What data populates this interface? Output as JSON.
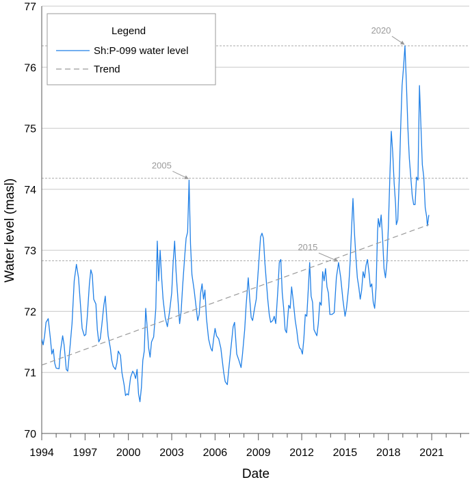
{
  "chart_data": {
    "type": "line",
    "title": "",
    "xlabel": "Date",
    "ylabel": "Water level (masl)",
    "xlim": [
      1994,
      2023.6
    ],
    "ylim": [
      70,
      77
    ],
    "x_ticks": [
      1994,
      1997,
      2000,
      2003,
      2006,
      2009,
      2012,
      2015,
      2018,
      2021
    ],
    "y_ticks": [
      70,
      71,
      72,
      73,
      74,
      75,
      76,
      77
    ],
    "grid": "horizontal",
    "legend": {
      "title": "Legend",
      "position": "top-left",
      "entries": [
        "Sh:P-099 water level",
        "Trend"
      ]
    },
    "series": [
      {
        "name": "Sh:P-099 water level",
        "color": "#1f7fe6",
        "points": [
          [
            1994.0,
            71.55
          ],
          [
            1994.1,
            71.45
          ],
          [
            1994.2,
            71.6
          ],
          [
            1994.3,
            71.82
          ],
          [
            1994.45,
            71.88
          ],
          [
            1994.6,
            71.55
          ],
          [
            1994.7,
            71.3
          ],
          [
            1994.8,
            71.38
          ],
          [
            1994.9,
            71.15
          ],
          [
            1995.0,
            71.07
          ],
          [
            1995.2,
            71.06
          ],
          [
            1995.3,
            71.35
          ],
          [
            1995.45,
            71.6
          ],
          [
            1995.55,
            71.45
          ],
          [
            1995.7,
            71.05
          ],
          [
            1995.8,
            71.02
          ],
          [
            1995.95,
            71.4
          ],
          [
            1996.1,
            71.8
          ],
          [
            1996.25,
            72.5
          ],
          [
            1996.4,
            72.77
          ],
          [
            1996.55,
            72.55
          ],
          [
            1996.7,
            72.05
          ],
          [
            1996.8,
            71.72
          ],
          [
            1996.95,
            71.6
          ],
          [
            1997.05,
            71.62
          ],
          [
            1997.15,
            71.9
          ],
          [
            1997.3,
            72.45
          ],
          [
            1997.4,
            72.68
          ],
          [
            1997.5,
            72.6
          ],
          [
            1997.6,
            72.2
          ],
          [
            1997.75,
            72.12
          ],
          [
            1997.85,
            71.7
          ],
          [
            1997.95,
            71.5
          ],
          [
            1998.05,
            71.55
          ],
          [
            1998.15,
            71.75
          ],
          [
            1998.3,
            72.1
          ],
          [
            1998.4,
            72.25
          ],
          [
            1998.5,
            71.9
          ],
          [
            1998.6,
            71.6
          ],
          [
            1998.75,
            71.4
          ],
          [
            1998.85,
            71.2
          ],
          [
            1998.95,
            71.1
          ],
          [
            1999.1,
            71.05
          ],
          [
            1999.2,
            71.15
          ],
          [
            1999.3,
            71.35
          ],
          [
            1999.45,
            71.28
          ],
          [
            1999.55,
            71.0
          ],
          [
            1999.7,
            70.8
          ],
          [
            1999.8,
            70.62
          ],
          [
            1999.9,
            70.65
          ],
          [
            2000.0,
            70.63
          ],
          [
            2000.15,
            70.92
          ],
          [
            2000.3,
            71.02
          ],
          [
            2000.4,
            70.98
          ],
          [
            2000.5,
            70.9
          ],
          [
            2000.6,
            71.05
          ],
          [
            2000.7,
            70.65
          ],
          [
            2000.8,
            70.52
          ],
          [
            2000.9,
            70.75
          ],
          [
            2001.0,
            71.2
          ],
          [
            2001.1,
            71.35
          ],
          [
            2001.2,
            72.05
          ],
          [
            2001.3,
            71.75
          ],
          [
            2001.4,
            71.4
          ],
          [
            2001.5,
            71.25
          ],
          [
            2001.6,
            71.5
          ],
          [
            2001.75,
            71.58
          ],
          [
            2001.9,
            72.05
          ],
          [
            2002.0,
            73.15
          ],
          [
            2002.1,
            72.5
          ],
          [
            2002.2,
            73.0
          ],
          [
            2002.3,
            72.55
          ],
          [
            2002.4,
            72.2
          ],
          [
            2002.55,
            71.9
          ],
          [
            2002.7,
            71.75
          ],
          [
            2002.85,
            72.0
          ],
          [
            2003.0,
            72.3
          ],
          [
            2003.1,
            72.8
          ],
          [
            2003.2,
            73.15
          ],
          [
            2003.3,
            72.65
          ],
          [
            2003.4,
            72.3
          ],
          [
            2003.55,
            71.8
          ],
          [
            2003.65,
            72.0
          ],
          [
            2003.75,
            72.4
          ],
          [
            2003.9,
            72.9
          ],
          [
            2004.0,
            73.2
          ],
          [
            2004.1,
            73.3
          ],
          [
            2004.2,
            74.15
          ],
          [
            2004.3,
            73.1
          ],
          [
            2004.4,
            72.6
          ],
          [
            2004.55,
            72.35
          ],
          [
            2004.7,
            72.05
          ],
          [
            2004.8,
            71.85
          ],
          [
            2004.9,
            71.95
          ],
          [
            2005.0,
            72.3
          ],
          [
            2005.1,
            72.45
          ],
          [
            2005.2,
            72.2
          ],
          [
            2005.3,
            72.35
          ],
          [
            2005.4,
            71.9
          ],
          [
            2005.55,
            71.55
          ],
          [
            2005.7,
            71.4
          ],
          [
            2005.8,
            71.35
          ],
          [
            2005.9,
            71.55
          ],
          [
            2006.0,
            71.72
          ],
          [
            2006.1,
            71.6
          ],
          [
            2006.25,
            71.55
          ],
          [
            2006.4,
            71.4
          ],
          [
            2006.5,
            71.2
          ],
          [
            2006.6,
            71.0
          ],
          [
            2006.7,
            70.85
          ],
          [
            2006.85,
            70.8
          ],
          [
            2006.95,
            71.05
          ],
          [
            2007.1,
            71.4
          ],
          [
            2007.25,
            71.75
          ],
          [
            2007.35,
            71.82
          ],
          [
            2007.5,
            71.3
          ],
          [
            2007.65,
            71.2
          ],
          [
            2007.8,
            71.08
          ],
          [
            2007.9,
            71.3
          ],
          [
            2008.05,
            71.7
          ],
          [
            2008.15,
            72.1
          ],
          [
            2008.3,
            72.55
          ],
          [
            2008.4,
            72.2
          ],
          [
            2008.5,
            71.9
          ],
          [
            2008.6,
            71.85
          ],
          [
            2008.7,
            72.0
          ],
          [
            2008.85,
            72.2
          ],
          [
            2009.0,
            72.7
          ],
          [
            2009.15,
            73.22
          ],
          [
            2009.25,
            73.28
          ],
          [
            2009.35,
            73.2
          ],
          [
            2009.45,
            72.8
          ],
          [
            2009.55,
            72.5
          ],
          [
            2009.65,
            72.2
          ],
          [
            2009.75,
            71.95
          ],
          [
            2009.85,
            71.82
          ],
          [
            2010.0,
            71.85
          ],
          [
            2010.1,
            71.92
          ],
          [
            2010.2,
            71.8
          ],
          [
            2010.35,
            72.35
          ],
          [
            2010.45,
            72.8
          ],
          [
            2010.55,
            72.85
          ],
          [
            2010.65,
            72.3
          ],
          [
            2010.75,
            72.05
          ],
          [
            2010.85,
            71.7
          ],
          [
            2010.95,
            71.65
          ],
          [
            2011.1,
            72.1
          ],
          [
            2011.2,
            72.05
          ],
          [
            2011.3,
            72.4
          ],
          [
            2011.4,
            72.2
          ],
          [
            2011.55,
            71.85
          ],
          [
            2011.65,
            71.7
          ],
          [
            2011.75,
            71.5
          ],
          [
            2011.85,
            71.4
          ],
          [
            2011.95,
            71.38
          ],
          [
            2012.05,
            71.3
          ],
          [
            2012.15,
            71.55
          ],
          [
            2012.25,
            71.95
          ],
          [
            2012.35,
            71.92
          ],
          [
            2012.45,
            72.35
          ],
          [
            2012.55,
            72.8
          ],
          [
            2012.65,
            72.25
          ],
          [
            2012.75,
            72.15
          ],
          [
            2012.85,
            71.7
          ],
          [
            2012.95,
            71.65
          ],
          [
            2013.05,
            71.6
          ],
          [
            2013.15,
            71.8
          ],
          [
            2013.25,
            72.15
          ],
          [
            2013.35,
            72.1
          ],
          [
            2013.45,
            72.65
          ],
          [
            2013.55,
            72.5
          ],
          [
            2013.65,
            72.7
          ],
          [
            2013.75,
            72.4
          ],
          [
            2013.85,
            72.3
          ],
          [
            2013.95,
            71.95
          ],
          [
            2014.1,
            71.95
          ],
          [
            2014.25,
            71.98
          ],
          [
            2014.4,
            72.55
          ],
          [
            2014.55,
            72.8
          ],
          [
            2014.7,
            72.55
          ],
          [
            2014.85,
            72.2
          ],
          [
            2015.0,
            71.92
          ],
          [
            2015.1,
            72.05
          ],
          [
            2015.25,
            72.4
          ],
          [
            2015.35,
            72.8
          ],
          [
            2015.45,
            73.35
          ],
          [
            2015.55,
            73.85
          ],
          [
            2015.65,
            73.3
          ],
          [
            2015.75,
            72.9
          ],
          [
            2015.85,
            72.55
          ],
          [
            2015.95,
            72.4
          ],
          [
            2016.05,
            72.2
          ],
          [
            2016.15,
            72.35
          ],
          [
            2016.25,
            72.65
          ],
          [
            2016.35,
            72.55
          ],
          [
            2016.45,
            72.75
          ],
          [
            2016.55,
            72.85
          ],
          [
            2016.65,
            72.65
          ],
          [
            2016.75,
            72.4
          ],
          [
            2016.85,
            72.45
          ],
          [
            2016.95,
            72.15
          ],
          [
            2017.05,
            72.05
          ],
          [
            2017.15,
            72.4
          ],
          [
            2017.25,
            73.3
          ],
          [
            2017.3,
            73.52
          ],
          [
            2017.4,
            73.38
          ],
          [
            2017.5,
            73.58
          ],
          [
            2017.6,
            73.2
          ],
          [
            2017.7,
            72.7
          ],
          [
            2017.8,
            72.55
          ],
          [
            2017.9,
            72.8
          ],
          [
            2018.0,
            73.4
          ],
          [
            2018.1,
            74.2
          ],
          [
            2018.2,
            74.95
          ],
          [
            2018.3,
            74.6
          ],
          [
            2018.4,
            74.1
          ],
          [
            2018.5,
            73.75
          ],
          [
            2018.55,
            73.42
          ],
          [
            2018.65,
            73.5
          ],
          [
            2018.75,
            74.15
          ],
          [
            2018.85,
            75.0
          ],
          [
            2018.95,
            75.7
          ],
          [
            2019.05,
            76.0
          ],
          [
            2019.15,
            76.35
          ],
          [
            2019.25,
            75.7
          ],
          [
            2019.35,
            75.0
          ],
          [
            2019.45,
            74.5
          ],
          [
            2019.55,
            74.2
          ],
          [
            2019.65,
            73.9
          ],
          [
            2019.75,
            73.75
          ],
          [
            2019.85,
            73.75
          ],
          [
            2019.95,
            74.2
          ],
          [
            2020.05,
            74.15
          ],
          [
            2020.15,
            75.7
          ],
          [
            2020.25,
            75.05
          ],
          [
            2020.35,
            74.4
          ],
          [
            2020.45,
            74.2
          ],
          [
            2020.55,
            73.7
          ],
          [
            2020.65,
            73.55
          ],
          [
            2020.7,
            73.4
          ],
          [
            2020.8,
            73.58
          ]
        ]
      },
      {
        "name": "Trend",
        "color": "#999999",
        "style": "dashed",
        "points": [
          [
            1994.0,
            71.12
          ],
          [
            2020.8,
            73.42
          ]
        ]
      }
    ],
    "reference_lines": [
      {
        "y": 74.18,
        "label": "2005",
        "point": [
          2004.2,
          74.15
        ]
      },
      {
        "y": 72.83,
        "label": "2015",
        "point": [
          2014.55,
          72.8
        ]
      },
      {
        "y": 76.35,
        "label": "2020",
        "point": [
          2019.15,
          76.35
        ]
      }
    ],
    "annotations": [
      {
        "text": "2005",
        "point": [
          2004.2,
          74.15
        ]
      },
      {
        "text": "2015",
        "point": [
          2014.55,
          72.8
        ]
      },
      {
        "text": "2020",
        "point": [
          2019.15,
          76.35
        ]
      }
    ]
  }
}
